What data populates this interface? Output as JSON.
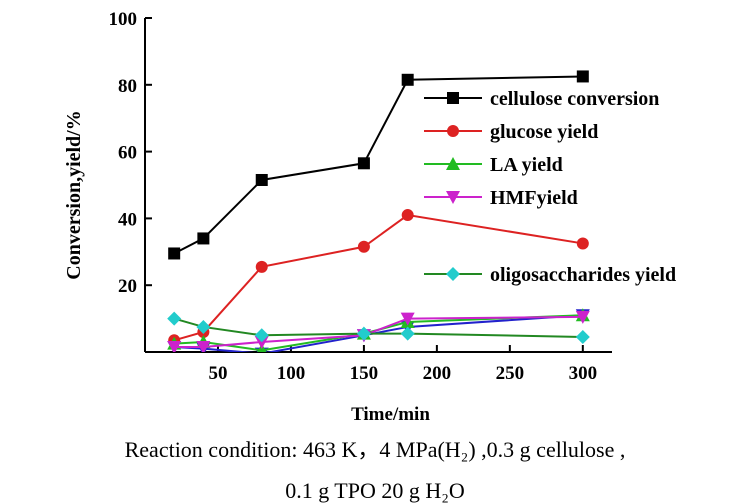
{
  "chart_data": {
    "type": "line",
    "ylabel": "Conversion,yield/%",
    "xlabel": "Time/min",
    "xlim": [
      0,
      320
    ],
    "ylim": [
      0,
      100
    ],
    "xticks": [
      50,
      100,
      150,
      200,
      250,
      300
    ],
    "yticks": [
      20,
      40,
      60,
      80,
      100
    ],
    "grid": false,
    "legend_position": "right",
    "series": [
      {
        "name": "cellulose conversion",
        "color": "#000000",
        "marker": "square",
        "x": [
          20,
          40,
          80,
          150,
          180,
          300
        ],
        "y": [
          29.5,
          34,
          51.5,
          56.5,
          81.5,
          82.5
        ]
      },
      {
        "name": "glucose yield",
        "color": "#dd2222",
        "marker": "circle",
        "x": [
          20,
          40,
          80,
          150,
          180,
          300
        ],
        "y": [
          3.5,
          6,
          25.5,
          31.5,
          41,
          32.5
        ]
      },
      {
        "name": "LA yield",
        "color": "#22bb22",
        "marker": "triangle-up",
        "x": [
          20,
          40,
          80,
          150,
          180,
          300
        ],
        "y": [
          2.5,
          3,
          0.5,
          5.5,
          9,
          11
        ]
      },
      {
        "name": "HMFyield",
        "color": "#cc22cc",
        "marker": "triangle-down",
        "x": [
          20,
          40,
          80,
          150,
          180,
          300
        ],
        "y": [
          1.5,
          1.5,
          3,
          5,
          10,
          10.5
        ]
      },
      {
        "name": "oligosaccharides yield",
        "color": "#22cccc",
        "marker": "diamond",
        "line_color": "#228822",
        "x": [
          20,
          40,
          80,
          150,
          180,
          300
        ],
        "y": [
          10,
          7.5,
          5,
          5.5,
          5.5,
          4.5
        ]
      }
    ],
    "extra_series": [
      {
        "color": "#2222cc",
        "marker": "triangle-down",
        "x": [
          20,
          40,
          80,
          150,
          180,
          300
        ],
        "y": [
          1.5,
          1,
          -0.5,
          5,
          7.5,
          11
        ]
      }
    ]
  },
  "caption": {
    "line1": "Reaction condition: 463 K，4 MPa(H₂) ,0.3 g cellulose ,",
    "line2": "0.1 g TPO 20 g H₂O"
  }
}
